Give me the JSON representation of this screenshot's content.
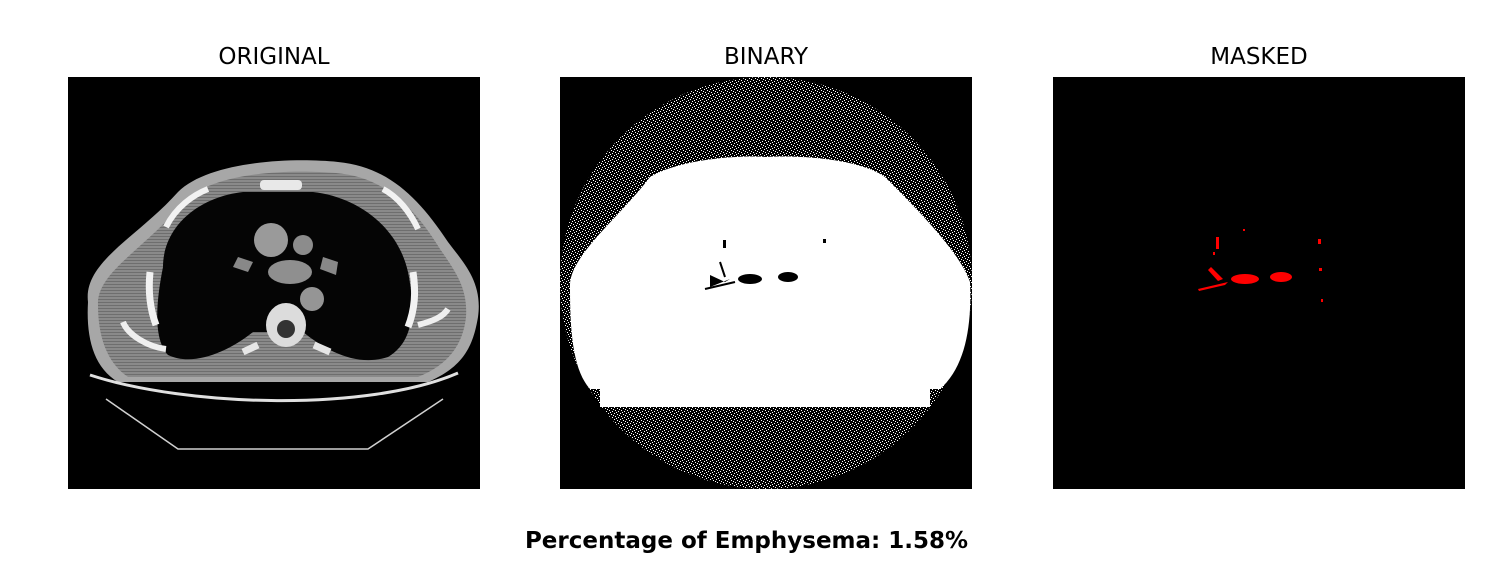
{
  "panels": [
    {
      "title": "ORIGINAL"
    },
    {
      "title": "BINARY"
    },
    {
      "title": "MASKED"
    }
  ],
  "footer": {
    "label": "Percentage of Emphysema: 1.58%"
  },
  "colors": {
    "background": "#ffffff",
    "image_background": "#000000",
    "mask_highlight": "#ff0000"
  }
}
